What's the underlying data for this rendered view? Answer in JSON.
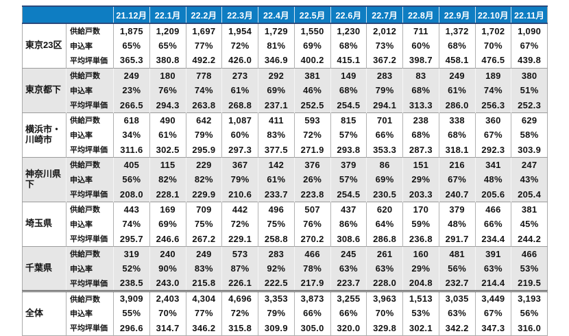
{
  "colors": {
    "header_bg": "#0e7dc2",
    "header_text": "#ffffff",
    "header_edge": "#2b4a7d",
    "shaded_row_bg": "#e6e6e6",
    "grid_line": "#b0b0b0"
  },
  "chart_data": {
    "type": "table",
    "columns": [
      "21.12月",
      "22.1月",
      "22.2月",
      "22.3月",
      "22.4月",
      "22.5月",
      "22.6月",
      "22.7月",
      "22.8月",
      "22.9月",
      "22.10月",
      "22.11月"
    ],
    "metrics": [
      "供給戸数",
      "申込率",
      "平均坪単価"
    ],
    "groups": [
      {
        "region": "東京23区",
        "rows": [
          [
            "1,875",
            "1,209",
            "1,697",
            "1,954",
            "1,729",
            "1,550",
            "1,230",
            "2,012",
            "711",
            "1,372",
            "1,702",
            "1,090"
          ],
          [
            "65%",
            "65%",
            "77%",
            "72%",
            "81%",
            "69%",
            "68%",
            "73%",
            "60%",
            "68%",
            "70%",
            "67%"
          ],
          [
            "365.3",
            "380.8",
            "492.2",
            "426.0",
            "346.9",
            "400.2",
            "415.1",
            "367.2",
            "398.7",
            "458.1",
            "476.5",
            "439.8"
          ]
        ]
      },
      {
        "region": "東京都下",
        "rows": [
          [
            "249",
            "180",
            "778",
            "273",
            "292",
            "381",
            "149",
            "283",
            "83",
            "249",
            "189",
            "380"
          ],
          [
            "23%",
            "76%",
            "74%",
            "61%",
            "69%",
            "46%",
            "68%",
            "79%",
            "68%",
            "61%",
            "74%",
            "51%"
          ],
          [
            "266.5",
            "294.3",
            "263.8",
            "268.8",
            "237.1",
            "252.5",
            "254.5",
            "294.1",
            "313.3",
            "286.0",
            "256.3",
            "252.3"
          ]
        ]
      },
      {
        "region": "横浜市・川崎市",
        "rows": [
          [
            "618",
            "490",
            "642",
            "1,087",
            "411",
            "593",
            "815",
            "701",
            "238",
            "338",
            "360",
            "629"
          ],
          [
            "34%",
            "61%",
            "79%",
            "60%",
            "83%",
            "72%",
            "57%",
            "66%",
            "68%",
            "68%",
            "67%",
            "58%"
          ],
          [
            "311.6",
            "302.5",
            "295.9",
            "297.3",
            "377.5",
            "271.9",
            "293.8",
            "353.3",
            "287.3",
            "318.1",
            "292.3",
            "303.9"
          ]
        ]
      },
      {
        "region": "神奈川県下",
        "rows": [
          [
            "405",
            "115",
            "229",
            "367",
            "142",
            "376",
            "379",
            "86",
            "151",
            "216",
            "341",
            "247"
          ],
          [
            "56%",
            "82%",
            "82%",
            "79%",
            "61%",
            "26%",
            "57%",
            "69%",
            "29%",
            "67%",
            "48%",
            "43%"
          ],
          [
            "208.0",
            "228.1",
            "229.9",
            "210.6",
            "233.7",
            "223.8",
            "254.5",
            "230.5",
            "203.3",
            "240.7",
            "205.6",
            "205.4"
          ]
        ]
      },
      {
        "region": "埼玉県",
        "rows": [
          [
            "443",
            "169",
            "709",
            "442",
            "496",
            "507",
            "437",
            "620",
            "170",
            "379",
            "466",
            "381"
          ],
          [
            "74%",
            "69%",
            "75%",
            "72%",
            "75%",
            "76%",
            "86%",
            "64%",
            "59%",
            "48%",
            "66%",
            "45%"
          ],
          [
            "295.7",
            "246.6",
            "267.2",
            "229.1",
            "258.8",
            "270.2",
            "308.6",
            "286.8",
            "236.8",
            "291.7",
            "234.4",
            "244.2"
          ]
        ]
      },
      {
        "region": "千葉県",
        "rows": [
          [
            "319",
            "240",
            "249",
            "573",
            "283",
            "466",
            "245",
            "261",
            "160",
            "481",
            "391",
            "466"
          ],
          [
            "52%",
            "90%",
            "83%",
            "87%",
            "92%",
            "78%",
            "63%",
            "63%",
            "29%",
            "56%",
            "63%",
            "53%"
          ],
          [
            "238.5",
            "243.0",
            "215.8",
            "226.1",
            "222.5",
            "217.9",
            "223.7",
            "228.0",
            "204.8",
            "232.7",
            "214.4",
            "219.5"
          ]
        ]
      },
      {
        "region": "全体",
        "rows": [
          [
            "3,909",
            "2,403",
            "4,304",
            "4,696",
            "3,353",
            "3,873",
            "3,255",
            "3,963",
            "1,513",
            "3,035",
            "3,449",
            "3,193"
          ],
          [
            "55%",
            "70%",
            "77%",
            "72%",
            "79%",
            "66%",
            "66%",
            "70%",
            "53%",
            "63%",
            "67%",
            "56%"
          ],
          [
            "296.6",
            "314.7",
            "346.2",
            "315.8",
            "309.9",
            "305.0",
            "320.0",
            "329.8",
            "302.1",
            "342.2",
            "347.3",
            "316.0"
          ]
        ]
      }
    ]
  }
}
